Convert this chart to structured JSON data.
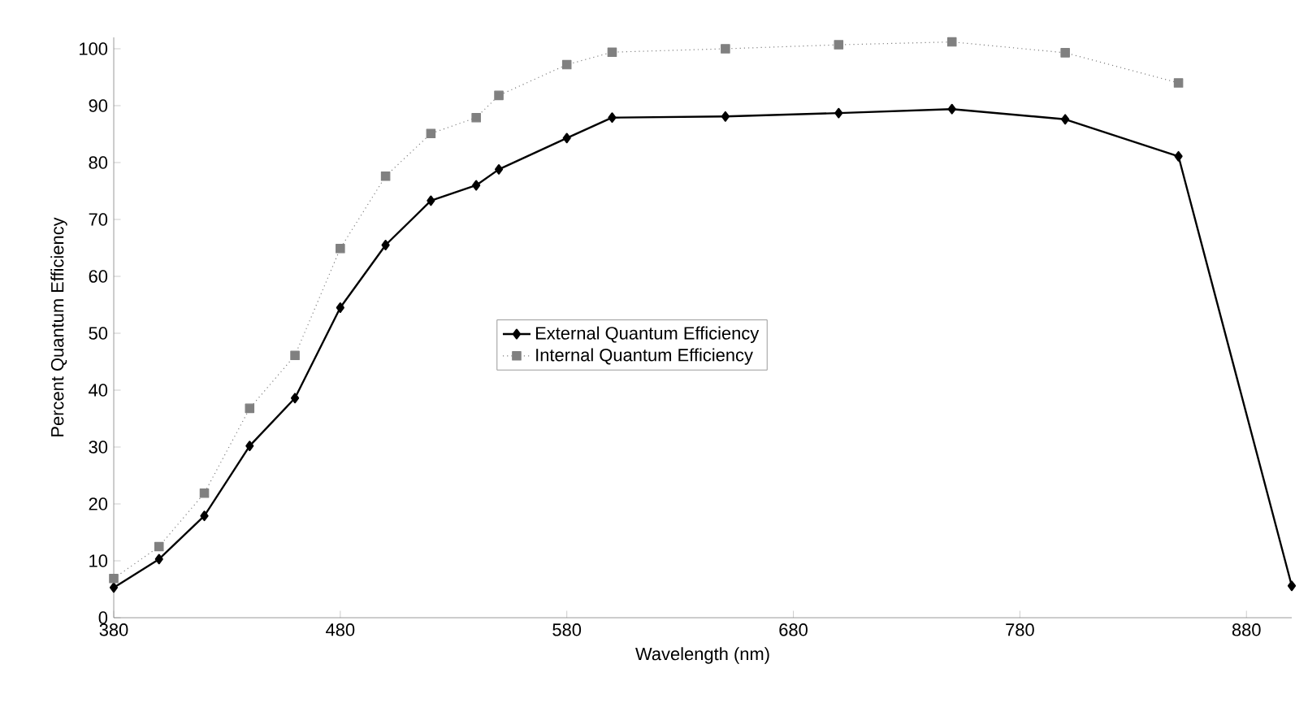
{
  "chart_data": {
    "type": "line",
    "xlabel": "Wavelength (nm)",
    "ylabel": "Percent Quantum Efficiency",
    "xlim": [
      380,
      900
    ],
    "xticks": [
      380,
      480,
      580,
      680,
      780,
      880
    ],
    "ylim": [
      0,
      102
    ],
    "yticks": [
      0,
      10,
      20,
      30,
      40,
      50,
      60,
      70,
      80,
      90,
      100
    ],
    "legend": "center",
    "grid": false,
    "series": [
      {
        "name": "External Quantum Efficiency",
        "color": "#000000",
        "marker": "diamond",
        "line_style": "solid",
        "x": [
          380,
          400,
          420,
          440,
          460,
          480,
          500,
          520,
          540,
          550,
          580,
          600,
          650,
          700,
          750,
          800,
          850,
          900
        ],
        "values": [
          5.3,
          10.3,
          17.9,
          30.2,
          38.6,
          54.5,
          65.5,
          73.3,
          76.0,
          78.8,
          84.3,
          87.9,
          88.1,
          88.7,
          89.4,
          87.6,
          81.1,
          5.6
        ]
      },
      {
        "name": "Internal Quantum Efficiency",
        "color": "#808080",
        "marker": "square",
        "line_style": "dotted",
        "x": [
          380,
          400,
          420,
          440,
          460,
          480,
          500,
          520,
          540,
          550,
          580,
          600,
          650,
          700,
          750,
          800,
          850
        ],
        "values": [
          6.9,
          12.5,
          21.9,
          36.8,
          46.1,
          64.9,
          77.6,
          85.1,
          87.9,
          91.8,
          97.2,
          99.4,
          100.0,
          100.7,
          101.2,
          99.3,
          94.0
        ]
      }
    ]
  }
}
